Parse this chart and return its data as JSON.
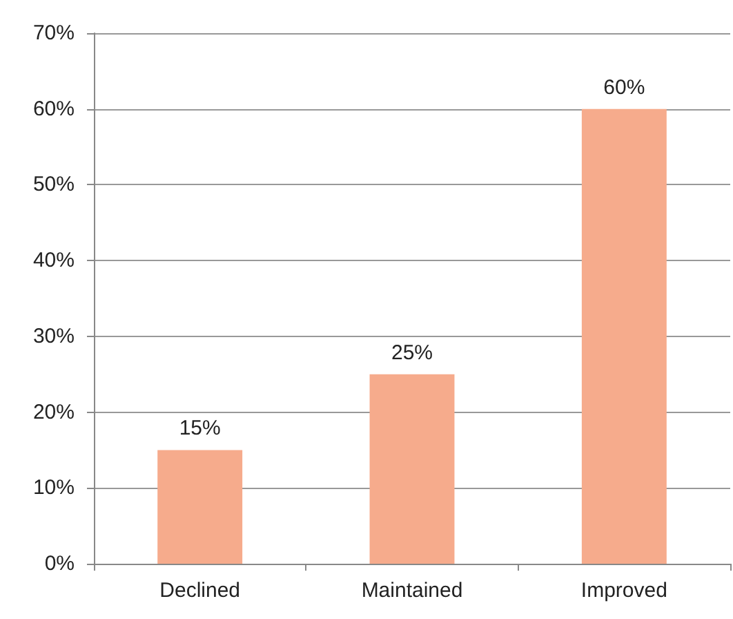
{
  "chart_data": {
    "type": "bar",
    "categories": [
      "Declined",
      "Maintained",
      "Improved"
    ],
    "values": [
      15,
      25,
      60
    ],
    "color": "#f6ab8c",
    "value_labels": [
      "15%",
      "25%",
      "60%"
    ],
    "ylim": [
      0,
      70
    ],
    "yticks": [
      {
        "value": 0,
        "label": "0%"
      },
      {
        "value": 10,
        "label": "10%"
      },
      {
        "value": 20,
        "label": "20%"
      },
      {
        "value": 30,
        "label": "30%"
      },
      {
        "value": 40,
        "label": "40%"
      },
      {
        "value": 50,
        "label": "50%"
      },
      {
        "value": 60,
        "label": "60%"
      },
      {
        "value": 70,
        "label": "70%"
      }
    ],
    "grid": "y"
  }
}
